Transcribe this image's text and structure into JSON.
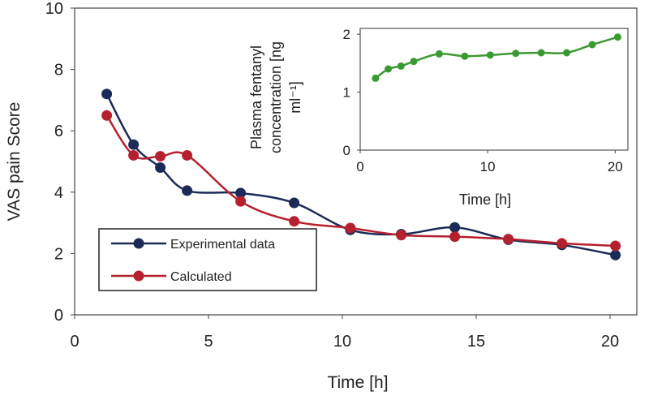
{
  "chart_data": [
    {
      "type": "line",
      "name": "main",
      "xlabel": "Time [h]",
      "ylabel": "VAS pain Score",
      "xlim": [
        0,
        21
      ],
      "ylim": [
        0,
        10
      ],
      "xticks": [
        0,
        5,
        10,
        15,
        20
      ],
      "yticks": [
        0,
        2,
        4,
        6,
        8,
        10
      ],
      "legend_position": "bottom-left",
      "series": [
        {
          "name": "Experimental data",
          "color": "#1b2a57",
          "x": [
            1.2,
            2.2,
            3.2,
            4.2,
            6.2,
            8.2,
            10.3,
            12.2,
            14.2,
            16.2,
            18.2,
            20.2
          ],
          "y": [
            7.2,
            5.55,
            4.8,
            4.05,
            3.97,
            3.65,
            2.77,
            2.63,
            2.85,
            2.45,
            2.28,
            1.95
          ]
        },
        {
          "name": "Calculated",
          "color": "#b5202e",
          "x": [
            1.2,
            2.2,
            3.2,
            4.2,
            6.2,
            8.2,
            10.3,
            12.2,
            14.2,
            16.2,
            18.2,
            20.2
          ],
          "y": [
            6.5,
            5.2,
            5.17,
            5.2,
            3.7,
            3.05,
            2.83,
            2.6,
            2.55,
            2.47,
            2.33,
            2.25
          ]
        }
      ]
    },
    {
      "type": "line",
      "name": "inset",
      "xlabel": "Time [h]",
      "ylabel_lines": [
        "Plasma fentanyl",
        "concentration [ng",
        "ml⁻¹]"
      ],
      "xlim": [
        0,
        21
      ],
      "ylim": [
        0,
        2.1
      ],
      "xticks": [
        0,
        10,
        20
      ],
      "yticks": [
        0,
        1,
        2
      ],
      "series": [
        {
          "name": "Plasma fentanyl concentration",
          "color": "#3a9a32",
          "x": [
            1.2,
            2.2,
            3.2,
            4.2,
            6.2,
            8.2,
            10.2,
            12.2,
            14.2,
            16.2,
            18.2,
            20.2
          ],
          "y": [
            1.24,
            1.4,
            1.45,
            1.53,
            1.66,
            1.62,
            1.64,
            1.67,
            1.68,
            1.68,
            1.82,
            1.95
          ]
        }
      ]
    }
  ]
}
